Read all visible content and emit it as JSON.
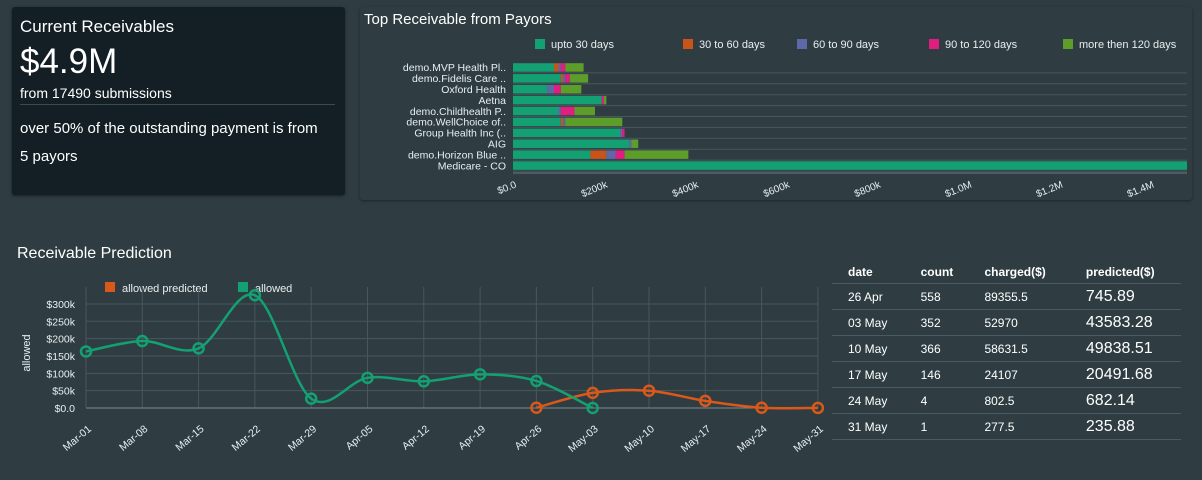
{
  "kpi": {
    "title": "Current Receivables",
    "amount": "$4.9M",
    "submissions": "from 17490 submissions",
    "note": "over 50% of the outstanding payment is from 5 payors"
  },
  "payors_chart": {
    "title": "Top Receivable from Payors",
    "legend": [
      {
        "label": "upto 30 days",
        "color": "#13a073"
      },
      {
        "label": "30 to 60 days",
        "color": "#c8541a"
      },
      {
        "label": "60 to 90 days",
        "color": "#5e68a8"
      },
      {
        "label": "90 to 120 days",
        "color": "#e01e80"
      },
      {
        "label": "more then 120 days",
        "color": "#5d9e2b"
      }
    ]
  },
  "prediction": {
    "title": "Receivable Prediction",
    "table": {
      "headers": [
        "date",
        "count",
        "charged($)",
        "predicted($)"
      ],
      "rows": [
        [
          "26 Apr",
          "558",
          "89355.5",
          "745.89"
        ],
        [
          "03 May",
          "352",
          "52970",
          "43583.28"
        ],
        [
          "10 May",
          "366",
          "58631.5",
          "49838.51"
        ],
        [
          "17 May",
          "146",
          "24107",
          "20491.68"
        ],
        [
          "24 May",
          "4",
          "802.5",
          "682.14"
        ],
        [
          "31 May",
          "1",
          "277.5",
          "235.88"
        ]
      ]
    }
  },
  "chart_data": [
    {
      "type": "bar",
      "orientation": "horizontal",
      "stacked": true,
      "title": "Top Receivable from Payors",
      "categories": [
        "demo.MVP Health Pl..",
        "demo.Fidelis Care ..",
        "Oxford Health",
        "Aetna",
        "demo.Childhealth P..",
        "demo.WellChoice of..",
        "Group Health Inc (..",
        "AIG",
        "demo.Horizon Blue ..",
        "Medicare - CO"
      ],
      "series": [
        {
          "name": "upto 30 days",
          "color": "#13a073",
          "values": [
            90000,
            105000,
            75000,
            195000,
            100000,
            105000,
            235000,
            255000,
            170000,
            1480000
          ]
        },
        {
          "name": "30 to 60 days",
          "color": "#c8541a",
          "values": [
            10000,
            5000,
            0,
            0,
            0,
            5000,
            0,
            0,
            35000,
            0
          ]
        },
        {
          "name": "60 to 90 days",
          "color": "#5e68a8",
          "values": [
            5000,
            5000,
            15000,
            0,
            5000,
            5000,
            5000,
            5000,
            20000,
            0
          ]
        },
        {
          "name": "90 to 120 days",
          "color": "#e01e80",
          "values": [
            10000,
            10000,
            15000,
            5000,
            30000,
            0,
            5000,
            0,
            20000,
            0
          ]
        },
        {
          "name": "more then 120 days",
          "color": "#5d9e2b",
          "values": [
            40000,
            40000,
            45000,
            5000,
            45000,
            125000,
            0,
            15000,
            140000,
            0
          ]
        }
      ],
      "xlim": [
        0,
        1480000
      ],
      "xticks": [
        "$0.0",
        "$200k",
        "$400k",
        "$600k",
        "$800k",
        "$1.0M",
        "$1.2M",
        "$1.4M"
      ],
      "xtick_values": [
        0,
        200000,
        400000,
        600000,
        800000,
        1000000,
        1200000,
        1400000
      ],
      "legend": "top"
    },
    {
      "type": "line",
      "categories": [
        "Mar-01",
        "Mar-08",
        "Mar-15",
        "Mar-22",
        "Mar-29",
        "Apr-05",
        "Apr-12",
        "Apr-19",
        "Apr-26",
        "May-03",
        "May-10",
        "May-17",
        "May-24",
        "May-31"
      ],
      "ylabel": "allowed",
      "ylim": [
        0,
        320000
      ],
      "yticks": [
        "$0.0",
        "$50k",
        "$100k",
        "$150k",
        "$200k",
        "$250k",
        "$300k"
      ],
      "ytick_values": [
        0,
        50000,
        100000,
        150000,
        200000,
        250000,
        300000
      ],
      "legend": "top",
      "series": [
        {
          "name": "allowed predicted",
          "color": "#d9581a",
          "values": [
            null,
            null,
            null,
            null,
            null,
            null,
            null,
            null,
            746,
            43583,
            49839,
            20492,
            682,
            236
          ]
        },
        {
          "name": "allowed",
          "color": "#13a073",
          "values": [
            163000,
            193000,
            172000,
            325000,
            27000,
            87000,
            77000,
            97000,
            78000,
            0,
            null,
            null,
            null,
            null
          ]
        }
      ]
    }
  ]
}
